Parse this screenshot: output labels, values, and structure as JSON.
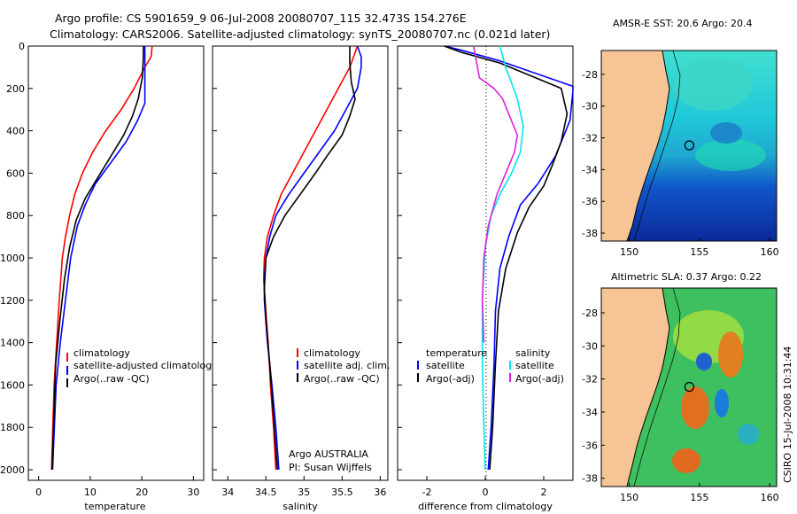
{
  "header": {
    "title_line1": "Argo profile: CS 5901659_9 06-Jul-2008 20080707_115 32.473S 154.276E",
    "title_line2": "Climatology: CARS2006. Satellite-adjusted climatology: synTS_20080707.nc (0.021d later)"
  },
  "colors": {
    "climatology": "#ff0000",
    "satellite": "#0000ff",
    "argo": "#000000",
    "sat_salinity": "#00e5ee",
    "argo_salinity": "#e020e0",
    "land": "#f6c495"
  },
  "chart_data": [
    {
      "type": "line",
      "id": "temperature-profile",
      "xlabel": "temperature",
      "ylabel": "",
      "xlim": [
        -2,
        32
      ],
      "ylim": [
        2050,
        0
      ],
      "xticks": [
        0,
        10,
        20,
        30
      ],
      "yticks": [
        0,
        200,
        400,
        600,
        800,
        1000,
        1200,
        1400,
        1600,
        1800,
        2000
      ],
      "legend": [
        "climatology",
        "satellite-adjusted climatology",
        "Argo(..raw -QC)"
      ],
      "series": [
        {
          "name": "climatology",
          "color": "#ff0000",
          "x": [
            22.0,
            21.8,
            20.6,
            18.5,
            16.0,
            13.0,
            10.5,
            8.5,
            7.0,
            6.0,
            5.2,
            4.6,
            4.0,
            3.5,
            3.0,
            2.5
          ],
          "y": [
            0,
            50,
            100,
            200,
            300,
            400,
            500,
            600,
            700,
            800,
            900,
            1000,
            1200,
            1400,
            1600,
            2000
          ]
        },
        {
          "name": "satellite-adjusted climatology",
          "color": "#0000ff",
          "x": [
            20.6,
            20.6,
            20.6,
            20.6,
            20.6,
            19.2,
            17.0,
            14.0,
            11.0,
            9.0,
            7.5,
            6.2,
            5.2,
            4.2,
            3.4,
            2.7
          ],
          "y": [
            0,
            50,
            100,
            200,
            270,
            350,
            450,
            550,
            650,
            750,
            850,
            1000,
            1200,
            1400,
            1600,
            2000
          ]
        },
        {
          "name": "Argo(..raw -QC)",
          "color": "#000000",
          "x": [
            20.3,
            20.3,
            20.1,
            19.3,
            18.2,
            16.5,
            14.0,
            11.5,
            9.0,
            7.3,
            6.0,
            5.0,
            4.1,
            3.3,
            2.6
          ],
          "y": [
            0,
            50,
            150,
            250,
            330,
            420,
            520,
            620,
            720,
            820,
            950,
            1100,
            1300,
            1500,
            2000
          ]
        }
      ]
    },
    {
      "type": "line",
      "id": "salinity-profile",
      "xlabel": "salinity",
      "ylabel": "",
      "xlim": [
        33.8,
        36.1
      ],
      "ylim": [
        2050,
        0
      ],
      "xticks": [
        34,
        34.5,
        35,
        35.5,
        36
      ],
      "legend": [
        "climatology",
        "satellite adj. clim.",
        "Argo(..raw -QC)"
      ],
      "annotation": [
        "Argo AUSTRALIA",
        "PI: Susan Wijffels"
      ],
      "series": [
        {
          "name": "climatology",
          "color": "#ff0000",
          "x": [
            35.7,
            35.65,
            35.6,
            35.45,
            35.3,
            35.15,
            35.0,
            34.85,
            34.7,
            34.6,
            34.52,
            34.48,
            34.47,
            34.49,
            34.53,
            34.56,
            34.6,
            34.63
          ],
          "y": [
            0,
            50,
            100,
            200,
            300,
            400,
            500,
            600,
            700,
            800,
            900,
            1000,
            1100,
            1200,
            1400,
            1600,
            1800,
            2000
          ]
        },
        {
          "name": "satellite adj. clim.",
          "color": "#0000ff",
          "x": [
            35.7,
            35.75,
            35.75,
            35.7,
            35.55,
            35.4,
            35.2,
            35.0,
            34.8,
            34.63,
            34.55,
            34.5,
            34.48,
            34.48,
            34.52,
            34.58,
            34.63,
            34.67
          ],
          "y": [
            0,
            50,
            100,
            200,
            300,
            400,
            500,
            600,
            700,
            800,
            900,
            1000,
            1100,
            1200,
            1400,
            1600,
            1800,
            2000
          ]
        },
        {
          "name": "Argo(..raw -QC)",
          "color": "#000000",
          "x": [
            35.6,
            35.6,
            35.62,
            35.67,
            35.6,
            35.5,
            35.3,
            35.15,
            34.95,
            34.75,
            34.6,
            34.5,
            34.48,
            34.5,
            34.55,
            34.6,
            34.65
          ],
          "y": [
            0,
            80,
            170,
            250,
            330,
            420,
            520,
            600,
            700,
            800,
            900,
            1000,
            1150,
            1300,
            1500,
            1750,
            2000
          ]
        }
      ]
    },
    {
      "type": "line",
      "id": "difference-profile",
      "xlabel": "difference from climatology",
      "ylabel": "",
      "xlim": [
        -3,
        3
      ],
      "ylim": [
        2050,
        0
      ],
      "xticks": [
        -2,
        0,
        2
      ],
      "legend_titles": [
        "temperature",
        "salinity"
      ],
      "legend": [
        "satellite",
        "Argo(-adj)",
        "satellite",
        "Argo(-adj)"
      ],
      "series": [
        {
          "name": "satellite",
          "group": "temperature",
          "color": "#0000ff",
          "x": [
            -1.4,
            -0.8,
            0.5,
            3.0,
            3.0,
            2.9,
            2.4,
            1.8,
            1.2,
            0.8,
            0.5,
            0.35,
            0.3,
            0.2,
            0.1
          ],
          "y": [
            0,
            20,
            70,
            190,
            210,
            350,
            520,
            650,
            750,
            900,
            1050,
            1250,
            1500,
            1800,
            2000
          ]
        },
        {
          "name": "Argo(-adj)",
          "group": "temperature",
          "color": "#000000",
          "x": [
            -1.4,
            -0.8,
            0.5,
            2.6,
            2.8,
            2.6,
            2.3,
            2.0,
            1.5,
            1.1,
            0.7,
            0.45,
            0.35,
            0.25,
            0.15
          ],
          "y": [
            0,
            30,
            80,
            200,
            320,
            450,
            560,
            660,
            760,
            880,
            1050,
            1250,
            1500,
            1800,
            2000
          ]
        },
        {
          "name": "satellite",
          "group": "salinity",
          "color": "#00e5ee",
          "x": [
            0.5,
            0.7,
            1.1,
            1.3,
            1.2,
            0.9,
            0.5,
            0.2,
            0.0,
            -0.1,
            -0.1,
            -0.05,
            0.0
          ],
          "y": [
            0,
            100,
            250,
            380,
            500,
            600,
            700,
            800,
            950,
            1200,
            1500,
            1800,
            2000
          ]
        },
        {
          "name": "Argo(-adj)",
          "group": "salinity",
          "color": "#e020e0",
          "x": [
            -0.4,
            -0.2,
            0.3,
            0.6,
            0.8,
            1.1,
            1.0,
            0.7,
            0.4,
            0.1,
            -0.05,
            -0.1,
            -0.05
          ],
          "y": [
            0,
            150,
            200,
            250,
            320,
            420,
            500,
            600,
            700,
            850,
            1000,
            1200,
            1400
          ]
        }
      ]
    },
    {
      "type": "heatmap",
      "id": "sst-map",
      "title": "AMSR-E SST: 20.6 Argo: 20.4",
      "xlim": [
        148,
        160.5
      ],
      "ylim": [
        -38.5,
        -26.5
      ],
      "xticks": [
        150,
        155,
        160
      ],
      "yticks": [
        -28,
        -30,
        -32,
        -34,
        -36,
        -38
      ],
      "marker": {
        "lon": 154.276,
        "lat": -32.473
      }
    },
    {
      "type": "heatmap",
      "id": "sla-map",
      "title": "Altimetric SLA: 0.37 Argo: 0.22",
      "xlim": [
        148,
        160.5
      ],
      "ylim": [
        -38.5,
        -26.5
      ],
      "xticks": [
        150,
        155,
        160
      ],
      "yticks": [
        -28,
        -30,
        -32,
        -34,
        -36,
        -38
      ],
      "marker": {
        "lon": 154.276,
        "lat": -32.473
      }
    }
  ],
  "side_label": "CSIRO 15-Jul-2008 10:31:44"
}
